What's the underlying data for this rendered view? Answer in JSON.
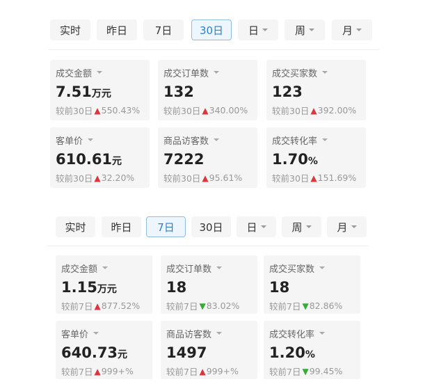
{
  "colors": {
    "active_border": "#8fbde6",
    "active_text": "#2e7fc7",
    "up": "#d9363e",
    "down": "#3aa83a"
  },
  "panels": [
    {
      "tabs": [
        {
          "label": "实时"
        },
        {
          "label": "昨日"
        },
        {
          "label": "7日"
        },
        {
          "label": "30日",
          "active": true
        },
        {
          "label": "日",
          "dropdown": true
        },
        {
          "label": "周",
          "dropdown": true
        },
        {
          "label": "月",
          "dropdown": true
        }
      ],
      "metrics": [
        {
          "label": "成交金额",
          "value": "7.51",
          "unit": "万元",
          "compare": "较前30日",
          "trend": "up",
          "change": "550.43%"
        },
        {
          "label": "成交订单数",
          "value": "132",
          "unit": "",
          "compare": "较前30日",
          "trend": "up",
          "change": "340.00%"
        },
        {
          "label": "成交买家数",
          "value": "123",
          "unit": "",
          "compare": "较前30日",
          "trend": "up",
          "change": "392.00%"
        },
        {
          "label": "客单价",
          "value": "610.61",
          "unit": "元",
          "compare": "较前30日",
          "trend": "up",
          "change": "32.20%"
        },
        {
          "label": "商品访客数",
          "value": "7222",
          "unit": "",
          "compare": "较前30日",
          "trend": "up",
          "change": "95.61%"
        },
        {
          "label": "成交转化率",
          "value": "1.70",
          "unit": "%",
          "compare": "较前30日",
          "trend": "up",
          "change": "151.69%"
        }
      ]
    },
    {
      "tabs": [
        {
          "label": "实时"
        },
        {
          "label": "昨日"
        },
        {
          "label": "7日",
          "active": true
        },
        {
          "label": "30日"
        },
        {
          "label": "日",
          "dropdown": true
        },
        {
          "label": "周",
          "dropdown": true
        },
        {
          "label": "月",
          "dropdown": true
        }
      ],
      "metrics": [
        {
          "label": "成交金额",
          "value": "1.15",
          "unit": "万元",
          "compare": "较前7日",
          "trend": "up",
          "change": "877.52%"
        },
        {
          "label": "成交订单数",
          "value": "18",
          "unit": "",
          "compare": "较前7日",
          "trend": "down",
          "change": "83.02%"
        },
        {
          "label": "成交买家数",
          "value": "18",
          "unit": "",
          "compare": "较前7日",
          "trend": "down",
          "change": "82.86%"
        },
        {
          "label": "客单价",
          "value": "640.73",
          "unit": "元",
          "compare": "较前7日",
          "trend": "up",
          "change": "999+%"
        },
        {
          "label": "商品访客数",
          "value": "1497",
          "unit": "",
          "compare": "较前7日",
          "trend": "up",
          "change": "999+%"
        },
        {
          "label": "成交转化率",
          "value": "1.20",
          "unit": "%",
          "compare": "较前7日",
          "trend": "down",
          "change": "99.45%"
        }
      ]
    }
  ]
}
